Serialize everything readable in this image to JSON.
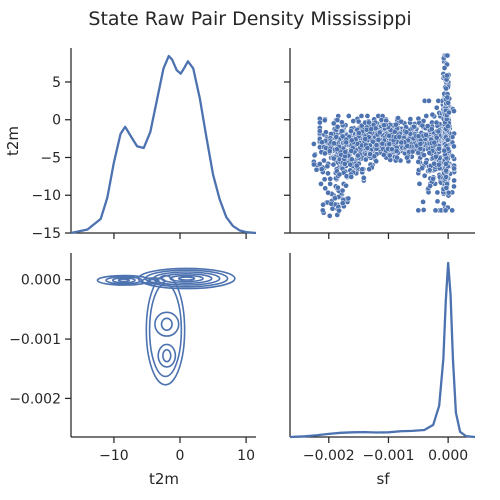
{
  "figure": {
    "title": "State Raw Pair Density Mississippi"
  },
  "colors": {
    "series": "#4c72b0",
    "axis": "#262626",
    "background": "#ffffff",
    "marker_edge": "#ffffff"
  },
  "chart_data": [
    {
      "type": "line",
      "panel": "t2m-diag-kde",
      "xlabel": "",
      "ylabel": "t2m",
      "xlim": [
        -16.5,
        11.5
      ],
      "ylim": [
        -15,
        9.5
      ],
      "xticks": [
        -10,
        0,
        10
      ],
      "yticks": [
        5,
        0,
        -5,
        -10,
        -15
      ],
      "ytick_labels": [
        "5",
        "0",
        "−5",
        "−10",
        "−15"
      ],
      "xtick_labels_visible": false,
      "density_curve": {
        "x": [
          -16.5,
          -14,
          -12,
          -11,
          -10,
          -9,
          -8.3,
          -7.5,
          -6.5,
          -5.5,
          -4.5,
          -3.5,
          -2.5,
          -1.7,
          -1.2,
          -0.5,
          0.1,
          0.6,
          1.2,
          2,
          3,
          4,
          5,
          6,
          7,
          8,
          9,
          10,
          11.5
        ],
        "density_rel": [
          0.0,
          0.02,
          0.08,
          0.2,
          0.4,
          0.56,
          0.6,
          0.55,
          0.49,
          0.48,
          0.57,
          0.75,
          0.93,
          1.0,
          0.98,
          0.92,
          0.9,
          0.93,
          0.97,
          0.93,
          0.76,
          0.54,
          0.33,
          0.19,
          0.09,
          0.04,
          0.015,
          0.005,
          0.0
        ]
      }
    },
    {
      "type": "scatter",
      "panel": "sf-vs-t2m",
      "xlabel": "",
      "ylabel": "",
      "xlim": [
        -0.00265,
        0.00045
      ],
      "ylim": [
        -15,
        9.5
      ],
      "xticks": [
        -0.002,
        -0.001,
        0.0
      ],
      "yticks": [
        5,
        0,
        -5,
        -10,
        -15
      ],
      "tick_labels_visible": false,
      "clusters": [
        {
          "x_range": [
            -0.00215,
            -5e-05
          ],
          "y_range": [
            -5.5,
            0.5
          ],
          "count": 700
        },
        {
          "x_range": [
            -0.00225,
            -0.0012
          ],
          "y_range": [
            -8.5,
            -1.5
          ],
          "count": 180
        },
        {
          "x_range": [
            -0.0021,
            -0.0016
          ],
          "y_range": [
            -13,
            -8
          ],
          "count": 40
        },
        {
          "x_range": [
            -0.0005,
            0.0001
          ],
          "y_range": [
            -12,
            2.5
          ],
          "count": 200
        },
        {
          "x_range": [
            -8e-05,
            2e-05
          ],
          "y_range": [
            -12,
            8.5
          ],
          "count": 260
        }
      ]
    },
    {
      "type": "contour",
      "panel": "t2m-vs-sf-kde",
      "xlabel": "t2m",
      "ylabel": "",
      "xlim": [
        -16.5,
        11.5
      ],
      "ylim": [
        -0.00265,
        0.00045
      ],
      "xticks": [
        -10,
        0,
        10
      ],
      "xtick_labels": [
        "−10",
        "0",
        "10"
      ],
      "yticks": [
        0.0,
        -0.001,
        -0.002
      ],
      "ytick_labels": [
        "0.000",
        "−0.001",
        "−0.002"
      ],
      "contour_sets": [
        {
          "center": [
            1.0,
            2e-05
          ],
          "radii_x": [
            1.2,
            2.5,
            3.8,
            5.0,
            6.2,
            7.3
          ],
          "radii_y": [
            2.5e-05,
            5e-05,
            8e-05,
            0.00011,
            0.00014,
            0.00017
          ]
        },
        {
          "center": [
            -8.5,
            -1e-05
          ],
          "radii_x": [
            0.8,
            1.7,
            2.7,
            4.0
          ],
          "radii_y": [
            2e-05,
            4e-05,
            6e-05,
            8e-05
          ]
        },
        {
          "center": [
            -4.0,
            -2e-05
          ],
          "radii_x": [
            0.8,
            1.7
          ],
          "radii_y": [
            2.5e-05,
            5e-05
          ]
        },
        {
          "center": [
            -2.0,
            -0.00075
          ],
          "radii_x": [
            0.8,
            1.8
          ],
          "radii_y": [
            0.0001,
            0.0002
          ]
        },
        {
          "center": [
            -2.0,
            -0.00128
          ],
          "radii_x": [
            0.6,
            1.3
          ],
          "radii_y": [
            0.0001,
            0.00019
          ]
        },
        {
          "center": [
            -2.2,
            -0.00085
          ],
          "radii_x": [
            2.4,
            2.9
          ],
          "radii_y": [
            0.00078,
            0.00092
          ]
        }
      ]
    },
    {
      "type": "line",
      "panel": "sf-diag-kde",
      "xlabel": "sf",
      "ylabel": "",
      "xlim": [
        -0.00265,
        0.00045
      ],
      "xticks": [
        -0.002,
        -0.001,
        0.0
      ],
      "xtick_labels": [
        "−0.002",
        "−0.001",
        "0.000"
      ],
      "density_curve": {
        "x": [
          -0.00265,
          -0.0024,
          -0.0022,
          -0.002,
          -0.0018,
          -0.0016,
          -0.0014,
          -0.0012,
          -0.001,
          -0.0008,
          -0.0006,
          -0.0004,
          -0.00025,
          -0.00015,
          -8e-05,
          -4e-05,
          0.0,
          4e-05,
          8e-05,
          0.00013,
          0.0002,
          0.0003,
          0.00045
        ],
        "density_rel": [
          0.0,
          0.004,
          0.01,
          0.018,
          0.024,
          0.027,
          0.028,
          0.026,
          0.027,
          0.033,
          0.035,
          0.04,
          0.07,
          0.18,
          0.45,
          0.78,
          1.0,
          0.82,
          0.45,
          0.14,
          0.03,
          0.005,
          0.0
        ]
      }
    }
  ]
}
